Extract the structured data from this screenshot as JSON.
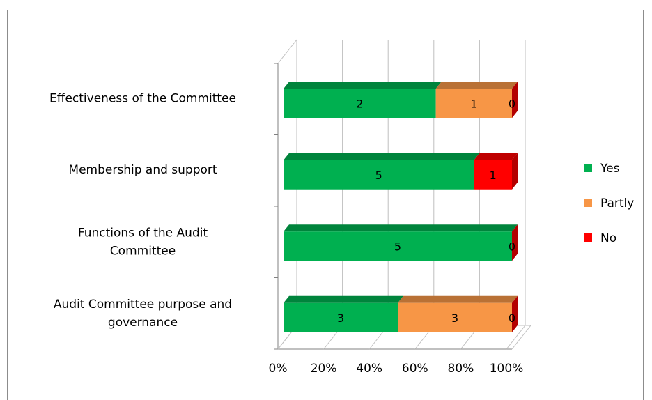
{
  "chart_data": {
    "type": "bar",
    "orientation": "horizontal",
    "stacked": "percent",
    "three_d": true,
    "categories": [
      "Audit Committee purpose and governance",
      "Functions of the Audit Committee",
      "Membership and support",
      "Effectiveness of the Committee"
    ],
    "series": [
      {
        "name": "Yes",
        "color": "#00b050",
        "values": [
          3,
          5,
          5,
          2
        ]
      },
      {
        "name": "Partly",
        "color": "#f79646",
        "values": [
          3,
          0,
          0,
          1
        ]
      },
      {
        "name": "No",
        "color": "#ff0000",
        "values": [
          0,
          0,
          1,
          0
        ]
      }
    ],
    "x_ticks": [
      "0%",
      "20%",
      "40%",
      "60%",
      "80%",
      "100%"
    ],
    "xlim": [
      0,
      100
    ],
    "grid": true,
    "legend": "right"
  }
}
